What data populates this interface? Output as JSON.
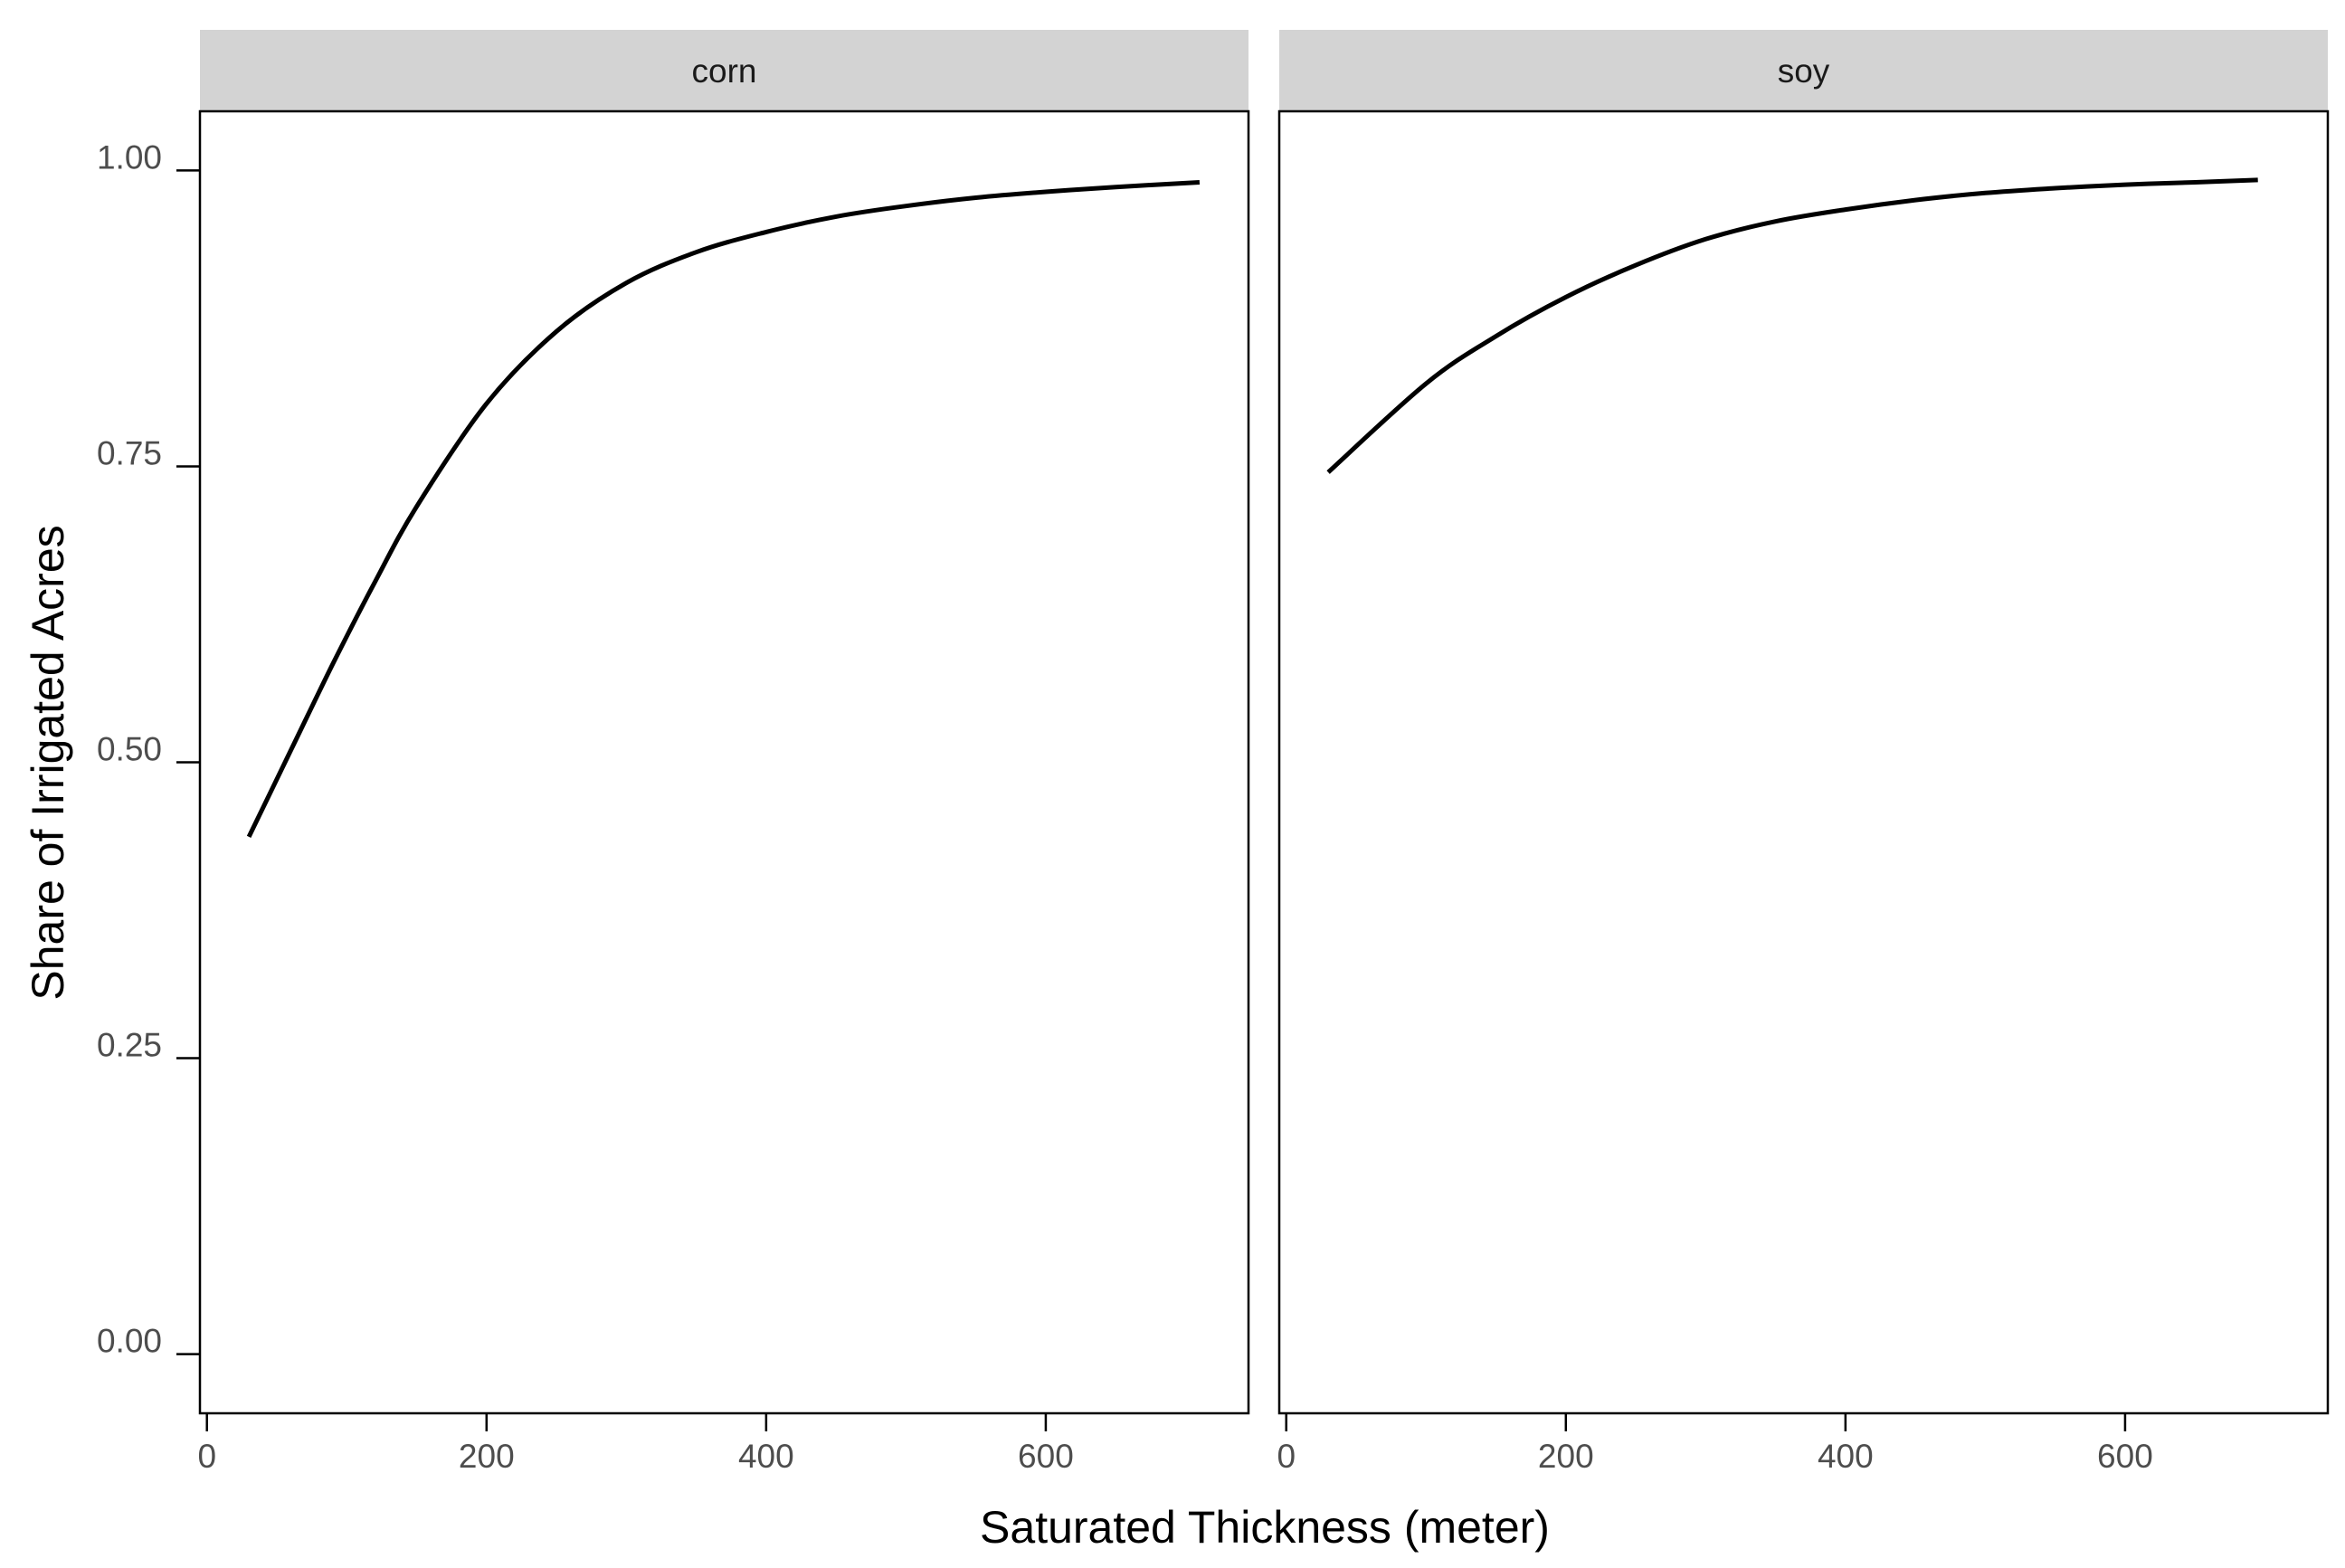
{
  "chart_data": {
    "type": "line",
    "xlabel": "Saturated Thickness (meter)",
    "ylabel": "Share of Irrigated Acres",
    "xlim": [
      -5,
      745
    ],
    "ylim": [
      -0.05,
      1.05
    ],
    "xticks": [
      0,
      200,
      400,
      600
    ],
    "xtick_labels": [
      "0",
      "200",
      "400",
      "600"
    ],
    "yticks": [
      0,
      0.25,
      0.5,
      0.75,
      1.0
    ],
    "ytick_labels": [
      "0.00",
      "0.25",
      "0.50",
      "0.75",
      "1.00"
    ],
    "grid": false,
    "line_color": "#000000",
    "strip_color": "#d3d3d3",
    "panels": [
      {
        "facet": "corn",
        "x": [
          30,
          60,
          90,
          120,
          150,
          200,
          250,
          300,
          350,
          400,
          450,
          500,
          550,
          600,
          650,
          710
        ],
        "y": [
          0.437,
          0.51,
          0.583,
          0.652,
          0.716,
          0.803,
          0.864,
          0.905,
          0.931,
          0.948,
          0.961,
          0.97,
          0.977,
          0.982,
          0.986,
          0.99
        ]
      },
      {
        "facet": "soy",
        "x": [
          30,
          100,
          150,
          200,
          250,
          300,
          350,
          400,
          450,
          500,
          550,
          600,
          650,
          695
        ],
        "y": [
          0.745,
          0.82,
          0.86,
          0.893,
          0.92,
          0.942,
          0.957,
          0.967,
          0.975,
          0.981,
          0.985,
          0.988,
          0.99,
          0.992
        ]
      }
    ]
  }
}
